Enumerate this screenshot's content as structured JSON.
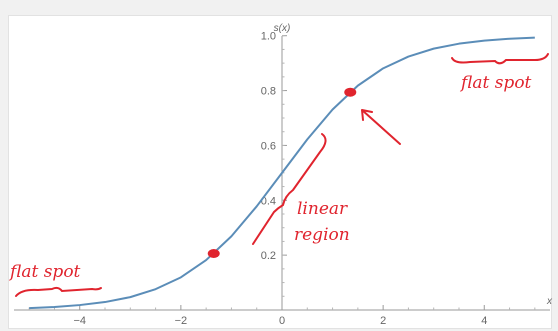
{
  "chart_data": {
    "type": "line",
    "title": "",
    "xlabel": "x",
    "ylabel": "s(x)",
    "xlim": [
      -5.3,
      5.3
    ],
    "ylim": [
      0,
      1.05
    ],
    "x_ticks": [
      -4,
      -2,
      0,
      2,
      4
    ],
    "y_ticks": [
      0.2,
      0.4,
      0.6,
      0.8,
      1.0
    ],
    "x_tick_labels": [
      "−4",
      "−2",
      "0",
      "2",
      "4"
    ],
    "y_tick_labels": [
      "0.2",
      "0.4",
      "0.6",
      "0.8",
      "1.0"
    ],
    "series": [
      {
        "x": [
          -5.0,
          -4.5,
          -4.0,
          -3.5,
          -3.0,
          -2.5,
          -2.0,
          -1.5,
          -1.0,
          -0.5,
          0.0,
          0.5,
          1.0,
          1.5,
          2.0,
          2.5,
          3.0,
          3.5,
          4.0,
          4.5,
          5.0
        ],
        "y": [
          0.007,
          0.011,
          0.018,
          0.029,
          0.047,
          0.076,
          0.119,
          0.182,
          0.269,
          0.378,
          0.5,
          0.622,
          0.731,
          0.818,
          0.881,
          0.924,
          0.953,
          0.971,
          0.982,
          0.989,
          0.993
        ],
        "color": "#5b8db8"
      }
    ],
    "highlight_points": [
      {
        "x": -1.35,
        "y": 0.206,
        "color": "#e0242e"
      },
      {
        "x": 1.35,
        "y": 0.794,
        "color": "#e0242e"
      }
    ],
    "annotations": {
      "flat_spot_right": "flat spot",
      "flat_spot_left": "flat spot",
      "linear_region_line1": "linear",
      "linear_region_line2": "region"
    },
    "grid": false
  }
}
